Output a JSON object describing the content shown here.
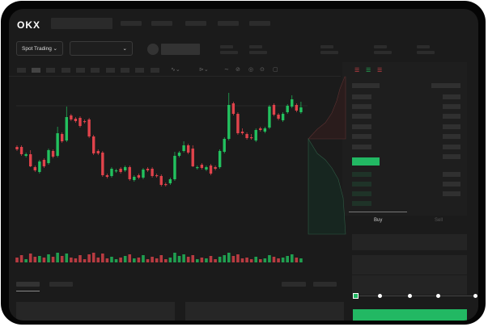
{
  "header": {
    "logo": "OKX"
  },
  "toolbar": {
    "market_select": "Spot Trading",
    "pair_select": ""
  },
  "trade_panel": {
    "tabs": [
      {
        "label": "Buy",
        "active": true
      },
      {
        "label": "Sell",
        "active": false
      }
    ],
    "slider_percent": 0
  },
  "colors": {
    "up": "#22c15e",
    "down": "#e0434b",
    "background": "#1b1b1b",
    "accent": "#22b863"
  },
  "icons": [
    "chevron-down-icon",
    "orderbook-both-icon",
    "orderbook-buy-icon",
    "orderbook-sell-icon",
    "indicator-icon",
    "draw-icon",
    "camera-icon",
    "settings-icon",
    "fullscreen-icon"
  ],
  "chart_data": {
    "type": "candlestick",
    "title": "",
    "grid": false,
    "candles": [
      [
        118,
        120,
        113,
        115
      ],
      [
        118,
        120,
        107,
        109
      ],
      [
        107,
        111,
        105,
        109
      ],
      [
        109,
        114,
        93,
        94
      ],
      [
        93,
        95,
        87,
        89
      ],
      [
        87,
        102,
        85,
        100
      ],
      [
        102,
        104,
        92,
        94
      ],
      [
        98,
        116,
        96,
        114
      ],
      [
        113,
        115,
        104,
        106
      ],
      [
        107,
        143,
        105,
        135
      ],
      [
        134,
        136,
        123,
        125
      ],
      [
        126,
        168,
        124,
        155
      ],
      [
        157,
        159,
        150,
        152
      ],
      [
        153,
        155,
        148,
        150
      ],
      [
        154,
        156,
        142,
        144
      ],
      [
        150,
        152,
        147,
        149
      ],
      [
        152,
        154,
        129,
        131
      ],
      [
        131,
        133,
        108,
        110
      ],
      [
        113,
        115,
        108,
        110
      ],
      [
        111,
        113,
        81,
        83
      ],
      [
        83,
        85,
        79,
        81
      ],
      [
        82,
        93,
        80,
        91
      ],
      [
        88,
        91,
        86,
        89
      ],
      [
        91,
        93,
        85,
        87
      ],
      [
        89,
        95,
        87,
        93
      ],
      [
        93,
        95,
        76,
        78
      ],
      [
        77,
        83,
        75,
        81
      ],
      [
        83,
        85,
        78,
        80
      ],
      [
        80,
        92,
        78,
        90
      ],
      [
        91,
        93,
        87,
        89
      ],
      [
        91,
        93,
        80,
        82
      ],
      [
        83,
        85,
        80,
        82
      ],
      [
        82,
        84,
        69,
        71
      ],
      [
        72,
        74,
        69,
        71
      ],
      [
        73,
        80,
        71,
        78
      ],
      [
        78,
        112,
        76,
        107
      ],
      [
        107,
        113,
        105,
        111
      ],
      [
        113,
        125,
        111,
        120
      ],
      [
        120,
        122,
        109,
        111
      ],
      [
        116,
        120,
        93,
        94
      ],
      [
        92,
        95,
        90,
        93
      ],
      [
        96,
        98,
        90,
        92
      ],
      [
        90,
        95,
        88,
        93
      ],
      [
        95,
        97,
        83,
        85
      ],
      [
        93,
        95,
        89,
        91
      ],
      [
        93,
        115,
        91,
        113
      ],
      [
        112,
        130,
        110,
        128
      ],
      [
        128,
        185,
        126,
        170
      ],
      [
        172,
        174,
        157,
        159
      ],
      [
        159,
        161,
        133,
        135
      ],
      [
        137,
        141,
        133,
        135
      ],
      [
        134,
        136,
        127,
        129
      ],
      [
        130,
        134,
        127,
        129
      ],
      [
        126,
        141,
        124,
        139
      ],
      [
        141,
        143,
        137,
        139
      ],
      [
        137,
        143,
        135,
        141
      ],
      [
        142,
        170,
        140,
        168
      ],
      [
        170,
        172,
        156,
        158
      ],
      [
        158,
        160,
        151,
        153
      ],
      [
        151,
        161,
        149,
        159
      ],
      [
        161,
        171,
        159,
        169
      ],
      [
        168,
        182,
        166,
        177
      ],
      [
        170,
        172,
        161,
        163
      ],
      [
        161,
        174,
        159,
        167
      ]
    ],
    "volume": [
      6,
      9,
      4,
      11,
      7,
      8,
      6,
      10,
      7,
      12,
      8,
      11,
      6,
      5,
      9,
      4,
      10,
      12,
      6,
      11,
      5,
      7,
      4,
      6,
      8,
      10,
      5,
      6,
      9,
      4,
      7,
      5,
      9,
      4,
      6,
      12,
      8,
      10,
      7,
      9,
      4,
      6,
      5,
      8,
      4,
      7,
      9,
      12,
      8,
      10,
      5,
      6,
      4,
      7,
      4,
      5,
      9,
      7,
      5,
      6,
      8,
      10,
      6,
      5
    ]
  }
}
